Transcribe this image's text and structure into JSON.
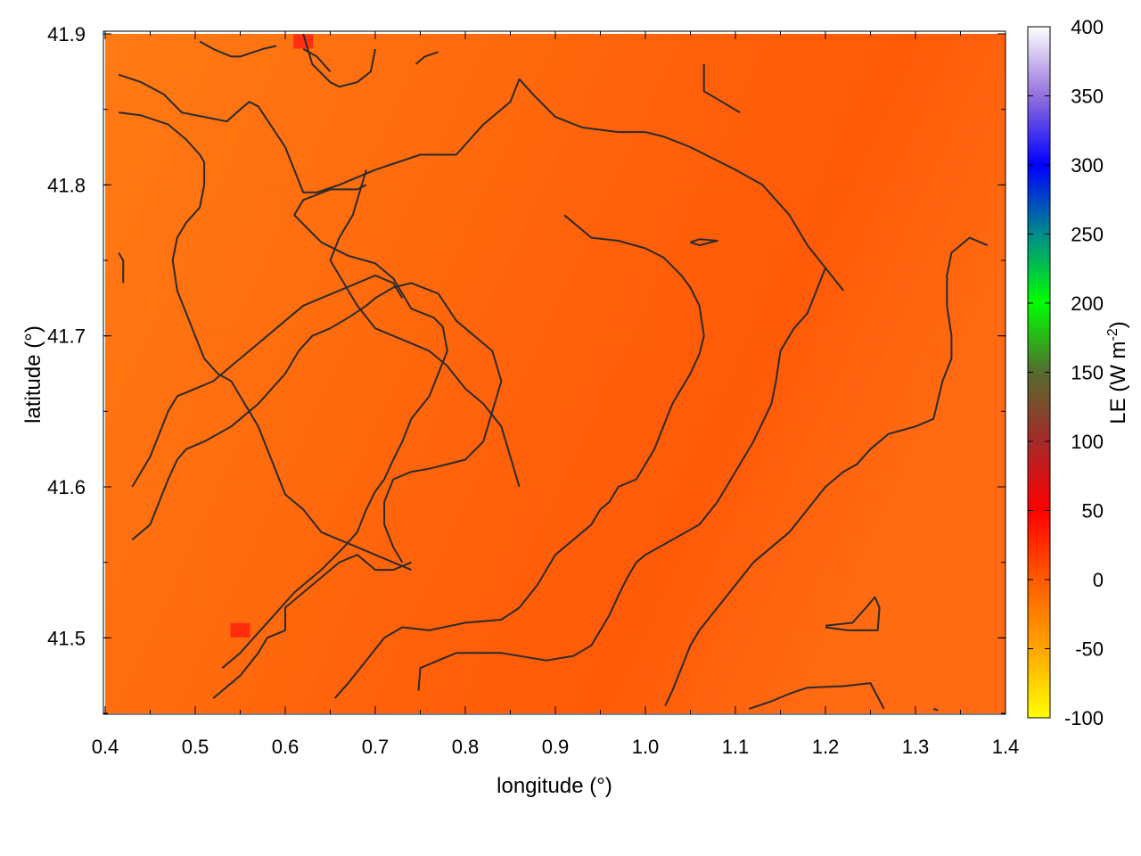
{
  "chart_data": {
    "type": "heatmap",
    "xlabel": "longitude (°)",
    "ylabel": "latitude (°)",
    "colorbar_label": "LE (W m",
    "colorbar_label_sup": "-2",
    "colorbar_label_close": ")",
    "xlim": [
      0.4,
      1.4
    ],
    "ylim": [
      41.45,
      41.9
    ],
    "x_ticks": [
      "0.4",
      "0.5",
      "0.6",
      "0.7",
      "0.8",
      "0.9",
      "1.0",
      "1.1",
      "1.2",
      "1.3",
      "1.4"
    ],
    "y_ticks": [
      "41.5",
      "41.6",
      "41.7",
      "41.8",
      "41.9"
    ],
    "colorbar_range": [
      -100,
      400
    ],
    "colorbar_ticks": [
      "-100",
      "-50",
      "0",
      "50",
      "100",
      "150",
      "200",
      "250",
      "300",
      "350",
      "400"
    ],
    "grid": true,
    "field_dominant_value": 25,
    "field_colors": {
      "lighter": "#ff7a14",
      "darker": "#ff5a08",
      "hotspot": "#ff1a10"
    },
    "hotspots": [
      {
        "lon": 0.55,
        "lat": 41.505,
        "value": 45
      },
      {
        "lon": 0.62,
        "lat": 41.895,
        "value": 40
      }
    ],
    "contours": [
      [
        [
          0.415,
          41.873
        ],
        [
          0.44,
          41.868
        ],
        [
          0.465,
          41.86
        ],
        [
          0.485,
          41.848
        ],
        [
          0.535,
          41.842
        ],
        [
          0.55,
          41.85
        ],
        [
          0.56,
          41.855
        ],
        [
          0.57,
          41.852
        ],
        [
          0.6,
          41.825
        ],
        [
          0.61,
          41.81
        ],
        [
          0.62,
          41.795
        ],
        [
          0.635,
          41.795
        ],
        [
          0.66,
          41.8
        ],
        [
          0.7,
          41.81
        ],
        [
          0.75,
          41.82
        ],
        [
          0.79,
          41.82
        ],
        [
          0.82,
          41.84
        ],
        [
          0.85,
          41.855
        ],
        [
          0.86,
          41.87
        ],
        [
          0.875,
          41.86
        ],
        [
          0.9,
          41.845
        ],
        [
          0.93,
          41.838
        ],
        [
          0.97,
          41.835
        ],
        [
          1.0,
          41.835
        ],
        [
          1.02,
          41.832
        ],
        [
          1.05,
          41.825
        ],
        [
          1.1,
          41.81
        ],
        [
          1.13,
          41.8
        ],
        [
          1.16,
          41.78
        ],
        [
          1.18,
          41.76
        ],
        [
          1.2,
          41.745
        ],
        [
          1.22,
          41.73
        ]
      ],
      [
        [
          0.415,
          41.848
        ],
        [
          0.44,
          41.846
        ],
        [
          0.47,
          41.84
        ],
        [
          0.49,
          41.83
        ],
        [
          0.505,
          41.82
        ],
        [
          0.51,
          41.815
        ],
        [
          0.51,
          41.8
        ],
        [
          0.505,
          41.785
        ],
        [
          0.49,
          41.775
        ],
        [
          0.48,
          41.765
        ],
        [
          0.475,
          41.75
        ],
        [
          0.48,
          41.73
        ],
        [
          0.49,
          41.715
        ],
        [
          0.5,
          41.7
        ],
        [
          0.51,
          41.685
        ],
        [
          0.525,
          41.675
        ],
        [
          0.54,
          41.67
        ],
        [
          0.55,
          41.66
        ],
        [
          0.56,
          41.65
        ],
        [
          0.57,
          41.64
        ],
        [
          0.58,
          41.625
        ],
        [
          0.59,
          41.61
        ],
        [
          0.6,
          41.595
        ],
        [
          0.62,
          41.585
        ],
        [
          0.64,
          41.57
        ],
        [
          0.66,
          41.565
        ],
        [
          0.68,
          41.56
        ],
        [
          0.7,
          41.555
        ],
        [
          0.72,
          41.55
        ],
        [
          0.74,
          41.545
        ]
      ],
      [
        [
          0.62,
          41.9
        ],
        [
          0.63,
          41.88
        ],
        [
          0.65,
          41.868
        ],
        [
          0.66,
          41.865
        ],
        [
          0.68,
          41.868
        ],
        [
          0.695,
          41.875
        ],
        [
          0.7,
          41.89
        ]
      ],
      [
        [
          0.505,
          41.895
        ],
        [
          0.52,
          41.89
        ],
        [
          0.54,
          41.885
        ],
        [
          0.55,
          41.885
        ],
        [
          0.575,
          41.89
        ],
        [
          0.59,
          41.892
        ]
      ],
      [
        [
          0.62,
          41.89
        ],
        [
          0.635,
          41.885
        ],
        [
          0.65,
          41.875
        ]
      ],
      [
        [
          0.745,
          41.88
        ],
        [
          0.755,
          41.885
        ],
        [
          0.77,
          41.888
        ]
      ],
      [
        [
          1.065,
          41.88
        ],
        [
          1.065,
          41.862
        ],
        [
          1.085,
          41.855
        ],
        [
          1.105,
          41.848
        ]
      ],
      [
        [
          0.415,
          41.755
        ],
        [
          0.42,
          41.75
        ],
        [
          0.42,
          41.735
        ]
      ],
      [
        [
          0.69,
          41.81
        ],
        [
          0.675,
          41.78
        ],
        [
          0.66,
          41.765
        ],
        [
          0.65,
          41.75
        ],
        [
          0.66,
          41.74
        ],
        [
          0.67,
          41.73
        ],
        [
          0.68,
          41.72
        ],
        [
          0.7,
          41.705
        ],
        [
          0.72,
          41.7
        ],
        [
          0.74,
          41.695
        ],
        [
          0.76,
          41.69
        ],
        [
          0.78,
          41.68
        ],
        [
          0.8,
          41.665
        ],
        [
          0.82,
          41.655
        ],
        [
          0.84,
          41.64
        ],
        [
          0.85,
          41.62
        ],
        [
          0.86,
          41.6
        ]
      ],
      [
        [
          0.61,
          41.78
        ],
        [
          0.62,
          41.79
        ],
        [
          0.65,
          41.797
        ],
        [
          0.68,
          41.797
        ],
        [
          0.69,
          41.8
        ]
      ],
      [
        [
          0.61,
          41.78
        ],
        [
          0.64,
          41.762
        ],
        [
          0.67,
          41.753
        ],
        [
          0.7,
          41.748
        ],
        [
          0.72,
          41.738
        ],
        [
          0.73,
          41.728
        ],
        [
          0.74,
          41.718
        ],
        [
          0.765,
          41.712
        ],
        [
          0.775,
          41.706
        ],
        [
          0.78,
          41.69
        ],
        [
          0.77,
          41.675
        ],
        [
          0.76,
          41.66
        ],
        [
          0.74,
          41.645
        ],
        [
          0.73,
          41.63
        ],
        [
          0.72,
          41.618
        ],
        [
          0.71,
          41.605
        ],
        [
          0.7,
          41.597
        ],
        [
          0.69,
          41.585
        ],
        [
          0.68,
          41.57
        ],
        [
          0.665,
          41.56
        ],
        [
          0.64,
          41.545
        ],
        [
          0.61,
          41.53
        ],
        [
          0.58,
          41.51
        ],
        [
          0.565,
          41.5
        ],
        [
          0.55,
          41.49
        ],
        [
          0.53,
          41.48
        ]
      ],
      [
        [
          0.43,
          41.6
        ],
        [
          0.44,
          41.61
        ],
        [
          0.45,
          41.62
        ],
        [
          0.46,
          41.635
        ],
        [
          0.47,
          41.65
        ],
        [
          0.48,
          41.66
        ],
        [
          0.5,
          41.665
        ],
        [
          0.52,
          41.67
        ],
        [
          0.54,
          41.68
        ],
        [
          0.56,
          41.69
        ],
        [
          0.58,
          41.7
        ],
        [
          0.6,
          41.71
        ],
        [
          0.62,
          41.72
        ],
        [
          0.64,
          41.725
        ],
        [
          0.66,
          41.73
        ],
        [
          0.68,
          41.735
        ],
        [
          0.7,
          41.74
        ],
        [
          0.72,
          41.735
        ],
        [
          0.73,
          41.725
        ]
      ],
      [
        [
          0.43,
          41.565
        ],
        [
          0.45,
          41.575
        ],
        [
          0.46,
          41.59
        ],
        [
          0.47,
          41.605
        ],
        [
          0.48,
          41.618
        ],
        [
          0.49,
          41.625
        ],
        [
          0.51,
          41.63
        ],
        [
          0.54,
          41.64
        ],
        [
          0.57,
          41.655
        ],
        [
          0.6,
          41.675
        ],
        [
          0.615,
          41.69
        ],
        [
          0.63,
          41.7
        ],
        [
          0.65,
          41.705
        ],
        [
          0.67,
          41.712
        ],
        [
          0.69,
          41.72
        ],
        [
          0.7,
          41.725
        ],
        [
          0.72,
          41.732
        ],
        [
          0.74,
          41.735
        ],
        [
          0.77,
          41.728
        ],
        [
          0.79,
          41.71
        ],
        [
          0.81,
          41.7
        ],
        [
          0.83,
          41.69
        ],
        [
          0.84,
          41.67
        ],
        [
          0.83,
          41.65
        ],
        [
          0.82,
          41.63
        ],
        [
          0.8,
          41.618
        ],
        [
          0.78,
          41.615
        ],
        [
          0.76,
          41.612
        ],
        [
          0.74,
          41.61
        ],
        [
          0.72,
          41.605
        ],
        [
          0.71,
          41.59
        ],
        [
          0.71,
          41.575
        ],
        [
          0.72,
          41.56
        ],
        [
          0.73,
          41.55
        ]
      ],
      [
        [
          0.52,
          41.46
        ],
        [
          0.55,
          41.475
        ],
        [
          0.57,
          41.49
        ],
        [
          0.58,
          41.5
        ],
        [
          0.6,
          41.505
        ],
        [
          0.6,
          41.52
        ],
        [
          0.62,
          41.53
        ],
        [
          0.64,
          41.54
        ],
        [
          0.66,
          41.55
        ],
        [
          0.68,
          41.555
        ],
        [
          0.7,
          41.545
        ],
        [
          0.72,
          41.545
        ],
        [
          0.74,
          41.55
        ]
      ],
      [
        [
          0.655,
          41.46
        ],
        [
          0.67,
          41.47
        ],
        [
          0.69,
          41.485
        ],
        [
          0.71,
          41.5
        ],
        [
          0.73,
          41.507
        ],
        [
          0.76,
          41.505
        ],
        [
          0.8,
          41.51
        ],
        [
          0.84,
          41.512
        ],
        [
          0.86,
          41.52
        ],
        [
          0.88,
          41.535
        ],
        [
          0.89,
          41.545
        ],
        [
          0.9,
          41.555
        ],
        [
          0.92,
          41.565
        ],
        [
          0.94,
          41.575
        ],
        [
          0.95,
          41.585
        ],
        [
          0.96,
          41.59
        ],
        [
          0.97,
          41.6
        ],
        [
          0.99,
          41.605
        ],
        [
          1.0,
          41.615
        ],
        [
          1.01,
          41.625
        ],
        [
          1.02,
          41.64
        ],
        [
          1.03,
          41.655
        ],
        [
          1.04,
          41.665
        ],
        [
          1.05,
          41.675
        ],
        [
          1.06,
          41.688
        ],
        [
          1.065,
          41.7
        ],
        [
          1.06,
          41.72
        ],
        [
          1.05,
          41.732
        ],
        [
          1.04,
          41.74
        ],
        [
          1.02,
          41.752
        ],
        [
          1.0,
          41.758
        ],
        [
          0.97,
          41.763
        ],
        [
          0.94,
          41.765
        ],
        [
          0.92,
          41.775
        ],
        [
          0.91,
          41.78
        ]
      ],
      [
        [
          0.748,
          41.465
        ],
        [
          0.75,
          41.48
        ],
        [
          0.77,
          41.485
        ],
        [
          0.79,
          41.49
        ],
        [
          0.84,
          41.49
        ],
        [
          0.89,
          41.485
        ],
        [
          0.92,
          41.488
        ],
        [
          0.94,
          41.495
        ],
        [
          0.95,
          41.505
        ],
        [
          0.96,
          41.515
        ],
        [
          0.97,
          41.528
        ],
        [
          0.98,
          41.54
        ],
        [
          0.99,
          41.55
        ],
        [
          1.0,
          41.555
        ],
        [
          1.03,
          41.565
        ],
        [
          1.06,
          41.575
        ],
        [
          1.08,
          41.59
        ],
        [
          1.1,
          41.61
        ],
        [
          1.12,
          41.63
        ],
        [
          1.14,
          41.655
        ],
        [
          1.145,
          41.67
        ],
        [
          1.15,
          41.69
        ],
        [
          1.165,
          41.705
        ],
        [
          1.18,
          41.715
        ],
        [
          1.19,
          41.73
        ],
        [
          1.2,
          41.745
        ]
      ],
      [
        [
          1.022,
          41.455
        ],
        [
          1.03,
          41.465
        ],
        [
          1.04,
          41.48
        ],
        [
          1.05,
          41.495
        ],
        [
          1.06,
          41.505
        ],
        [
          1.08,
          41.52
        ],
        [
          1.1,
          41.535
        ],
        [
          1.12,
          41.55
        ],
        [
          1.14,
          41.56
        ],
        [
          1.16,
          41.57
        ],
        [
          1.18,
          41.585
        ],
        [
          1.2,
          41.6
        ],
        [
          1.22,
          41.61
        ],
        [
          1.235,
          41.615
        ],
        [
          1.25,
          41.625
        ],
        [
          1.27,
          41.635
        ],
        [
          1.3,
          41.64
        ],
        [
          1.32,
          41.645
        ],
        [
          1.33,
          41.67
        ],
        [
          1.34,
          41.685
        ],
        [
          1.34,
          41.7
        ],
        [
          1.335,
          41.72
        ],
        [
          1.335,
          41.74
        ],
        [
          1.34,
          41.755
        ],
        [
          1.36,
          41.765
        ],
        [
          1.38,
          41.76
        ]
      ],
      [
        [
          1.115,
          41.453
        ],
        [
          1.14,
          41.458
        ],
        [
          1.16,
          41.463
        ],
        [
          1.18,
          41.467
        ],
        [
          1.22,
          41.468
        ],
        [
          1.25,
          41.47
        ],
        [
          1.265,
          41.453
        ]
      ],
      [
        [
          1.2,
          41.508
        ],
        [
          1.23,
          41.51
        ],
        [
          1.245,
          41.52
        ],
        [
          1.255,
          41.527
        ],
        [
          1.26,
          41.52
        ],
        [
          1.258,
          41.505
        ],
        [
          1.225,
          41.505
        ],
        [
          1.2,
          41.507
        ]
      ],
      [
        [
          1.05,
          41.762
        ],
        [
          1.06,
          41.764
        ],
        [
          1.08,
          41.763
        ],
        [
          1.06,
          41.76
        ],
        [
          1.05,
          41.762
        ]
      ],
      [
        [
          1.32,
          41.453
        ],
        [
          1.325,
          41.452
        ]
      ]
    ]
  }
}
